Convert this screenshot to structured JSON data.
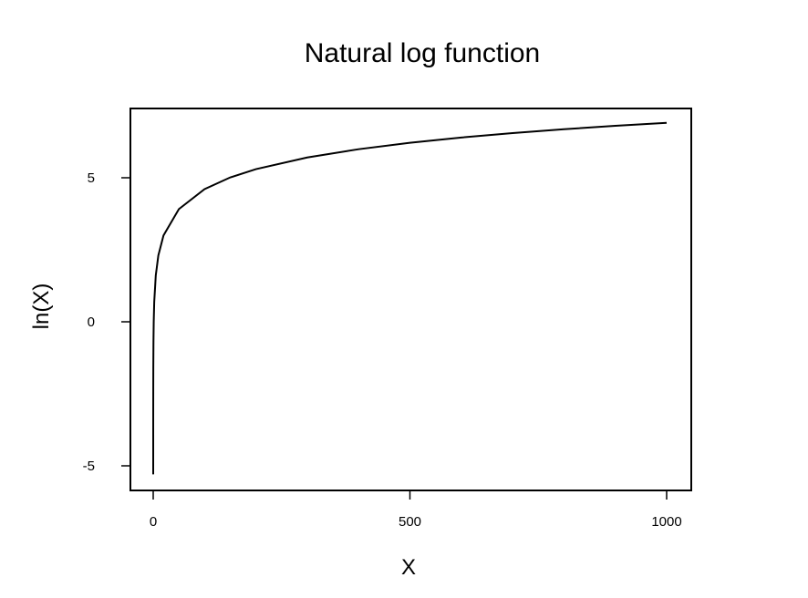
{
  "chart_data": {
    "type": "line",
    "title": "Natural log function",
    "xlabel": "X",
    "ylabel": "ln(X)",
    "function": "ln(x)",
    "xlim": [
      0.005,
      1000
    ],
    "ylim": [
      -6,
      7.3
    ],
    "x_ticks": [
      0,
      500,
      1000
    ],
    "x_tick_labels": [
      "0",
      "500",
      "1000"
    ],
    "y_ticks": [
      -5,
      0,
      5
    ],
    "y_tick_labels": [
      "-5",
      "0",
      "5"
    ],
    "grid": false,
    "legend": "none",
    "series": [
      {
        "x": [
          0.005,
          0.01,
          0.02,
          0.05,
          0.1,
          0.2,
          0.5,
          1,
          2,
          5,
          10,
          20,
          50,
          100,
          150,
          200,
          300,
          400,
          500,
          600,
          700,
          800,
          900,
          1000
        ],
        "values": [
          -5.298,
          -4.605,
          -3.912,
          -2.996,
          -2.303,
          -1.609,
          -0.693,
          0,
          0.693,
          1.609,
          2.303,
          2.996,
          3.912,
          4.605,
          5.011,
          5.298,
          5.704,
          5.991,
          6.215,
          6.397,
          6.551,
          6.685,
          6.802,
          6.908
        ]
      }
    ],
    "colors": {
      "line": "#000000",
      "frame": "#000000",
      "background": "#ffffff"
    }
  }
}
